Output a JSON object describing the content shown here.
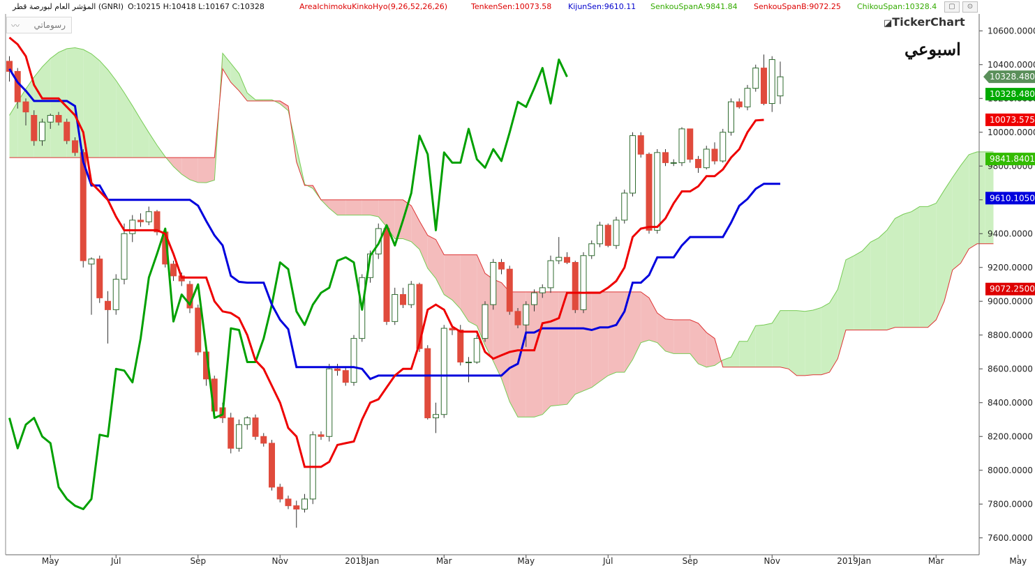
{
  "header": {
    "instrument": "المؤشر العام لبورصة قطر (GNRI)",
    "ohlc": "O:10215  H:10418  L:10167  C:10328",
    "indicator_name": "AreaIchimokuKinkoHyo(9,26,52,26,26)",
    "tenkan": "TenkenSen:10073.58",
    "kijun": "KijunSen:9610.11",
    "span_a": "SenkouSpanA:9841.84",
    "span_b": "SenkouSpanB:9072.25",
    "chikou": "ChikouSpan:10328.4"
  },
  "toolbar": {
    "drawings_label": "رسوماتي",
    "drawings_icon": "pencil-icon"
  },
  "window": {
    "restore_icon": "restore-window-icon",
    "settings_icon": "settings-circle-icon"
  },
  "brand": "TickerChart",
  "period_label": "اسبوعي",
  "colors": {
    "up_candle": "#ffffff",
    "down_candle": "#e04b3c",
    "tenkan": "#ee0000",
    "kijun": "#0000dd",
    "chikou": "#00a000",
    "span_a": "#77cc55",
    "span_b": "#dd3333",
    "cloud_bull": "#ccefc0",
    "cloud_bear": "#f4bcbc"
  },
  "chart_data": {
    "type": "candlestick-ichimoku",
    "ylim": [
      7500,
      10700
    ],
    "y_ticks": [
      7600,
      7800,
      8000,
      8200,
      8400,
      8600,
      8800,
      9000,
      9200,
      9400,
      9600,
      9800,
      10000,
      10200,
      10400,
      10600
    ],
    "x_ticks": [
      "May",
      "Jul",
      "Sep",
      "Nov",
      "2018Jan",
      "Mar",
      "May",
      "Jul",
      "Sep",
      "Nov",
      "2019Jan",
      "Mar",
      "May"
    ],
    "x_tick_index": [
      5,
      13,
      23,
      33,
      43,
      53,
      63,
      73,
      83,
      93,
      103,
      113,
      123
    ],
    "price_labels": [
      {
        "value": 10328.4805,
        "text": "10328.4805",
        "color": "#5a8f5a",
        "shape": "arrow"
      },
      {
        "value": 10328.4805,
        "text": "10328.4805",
        "color": "#00aa00",
        "shape": "box",
        "offset": 1
      },
      {
        "value": 10073.5752,
        "text": "10073.5752",
        "color": "#ee0000",
        "shape": "box"
      },
      {
        "value": 9841.8401,
        "text": "9841.8401",
        "color": "#33bb00",
        "shape": "box"
      },
      {
        "value": 9610.105,
        "text": "9610.1050",
        "color": "#0000dd",
        "shape": "box"
      },
      {
        "value": 9072.25,
        "text": "9072.2500",
        "color": "#dd0000",
        "shape": "box"
      }
    ],
    "candles_close": [
      10360,
      10180,
      10120,
      9950,
      10060,
      10100,
      10060,
      9950,
      9880,
      9240,
      9250,
      9020,
      8950,
      9130,
      9400,
      9480,
      9470,
      9530,
      9410,
      9220,
      9150,
      9120,
      8960,
      8700,
      8540,
      8350,
      8310,
      8130,
      8270,
      8310,
      8200,
      8160,
      7900,
      7830,
      7790,
      7770,
      7830,
      8210,
      8200,
      8600,
      8590,
      8520,
      8780,
      9140,
      9280,
      9430,
      8880,
      9040,
      8980,
      9100,
      8720,
      8310,
      8330,
      8840,
      8830,
      8640,
      8640,
      8780,
      8980,
      9230,
      9190,
      8940,
      8860,
      8980,
      9050,
      9080,
      9240,
      9260,
      9230,
      8950,
      9270,
      9340,
      9450,
      9330,
      9480,
      9640,
      9980,
      9870,
      9420,
      9880,
      9820,
      9820,
      10020,
      9840,
      9790,
      9900,
      9830,
      10000,
      10180,
      10150,
      10260,
      10380,
      10170,
      10430,
      10328
    ],
    "candles_open": [
      10420,
      10360,
      10180,
      10100,
      9950,
      10060,
      10100,
      10060,
      9950,
      9880,
      9220,
      9250,
      9000,
      8950,
      9130,
      9400,
      9480,
      9470,
      9530,
      9410,
      9220,
      9150,
      9100,
      8960,
      8700,
      8540,
      8370,
      8310,
      8130,
      8270,
      8310,
      8200,
      8160,
      7900,
      7830,
      7790,
      7770,
      7830,
      8210,
      8200,
      8600,
      8590,
      8520,
      8780,
      9140,
      9280,
      9430,
      8880,
      9040,
      8980,
      9100,
      8720,
      8310,
      8330,
      8840,
      8830,
      8640,
      8640,
      8780,
      8980,
      9230,
      9190,
      8940,
      8860,
      8980,
      9050,
      9080,
      9240,
      9260,
      9230,
      8950,
      9270,
      9340,
      9450,
      9330,
      9480,
      9640,
      9980,
      9870,
      9420,
      9880,
      9820,
      9820,
      10020,
      9840,
      9790,
      9900,
      9830,
      10000,
      10180,
      10150,
      10260,
      10380,
      10170,
      10215
    ],
    "candles_high": [
      10450,
      10380,
      10200,
      10130,
      10080,
      10110,
      10120,
      10080,
      9970,
      9900,
      9260,
      9270,
      9060,
      9160,
      9460,
      9510,
      9520,
      9560,
      9540,
      9420,
      9240,
      9170,
      9120,
      8980,
      8720,
      8560,
      8400,
      8340,
      8300,
      8320,
      8330,
      8220,
      8180,
      7920,
      7850,
      7820,
      7860,
      8230,
      8230,
      8630,
      8630,
      8610,
      8800,
      9160,
      9300,
      9460,
      9440,
      9080,
      9080,
      9120,
      9110,
      8740,
      8400,
      8860,
      8860,
      8860,
      8670,
      8800,
      9000,
      9250,
      9250,
      9210,
      8960,
      9000,
      9070,
      9100,
      9270,
      9380,
      9290,
      9240,
      9290,
      9360,
      9470,
      9460,
      9500,
      9660,
      10000,
      10000,
      9880,
      9900,
      9900,
      9840,
      10030,
      10020,
      9860,
      9920,
      9940,
      10020,
      10200,
      10200,
      10280,
      10400,
      10460,
      10450,
      10418
    ],
    "candles_low": [
      10300,
      10140,
      10040,
      9920,
      9920,
      10020,
      10040,
      9930,
      9860,
      9200,
      8920,
      8990,
      8750,
      8920,
      9100,
      9350,
      9440,
      9450,
      9390,
      9200,
      9120,
      9090,
      8930,
      8680,
      8500,
      8330,
      8280,
      8100,
      8110,
      8240,
      8180,
      8140,
      7880,
      7810,
      7770,
      7660,
      7750,
      7800,
      8180,
      8170,
      8560,
      8500,
      8500,
      8760,
      9110,
      9250,
      8860,
      8860,
      8960,
      8960,
      8700,
      8300,
      8220,
      8310,
      8800,
      8620,
      8520,
      8630,
      8760,
      8950,
      9160,
      8920,
      8840,
      8730,
      8940,
      9020,
      9050,
      9220,
      9220,
      8930,
      8930,
      9250,
      9320,
      9320,
      9310,
      9460,
      9620,
      9850,
      9400,
      9400,
      9800,
      9800,
      9800,
      9820,
      9760,
      9780,
      9810,
      9820,
      9980,
      10140,
      10130,
      10240,
      10160,
      10120,
      10167
    ],
    "tenkan": [
      10560,
      10520,
      10450,
      10280,
      10200,
      10200,
      10200,
      10150,
      10100,
      10000,
      9700,
      9650,
      9600,
      9500,
      9420,
      9420,
      9420,
      9420,
      9420,
      9400,
      9280,
      9140,
      9140,
      9140,
      9140,
      9000,
      8940,
      8930,
      8900,
      8800,
      8650,
      8600,
      8500,
      8400,
      8250,
      8200,
      8020,
      8020,
      8020,
      8050,
      8150,
      8160,
      8170,
      8300,
      8400,
      8420,
      8490,
      8560,
      8600,
      8600,
      8750,
      8950,
      8980,
      8950,
      8850,
      8820,
      8820,
      8820,
      8700,
      8660,
      8680,
      8700,
      8710,
      8710,
      8710,
      8870,
      8880,
      8900,
      9050,
      9050,
      9050,
      9050,
      9050,
      9080,
      9120,
      9200,
      9380,
      9430,
      9440,
      9440,
      9490,
      9580,
      9650,
      9650,
      9680,
      9740,
      9740,
      9780,
      9850,
      9900,
      10000,
      10070,
      10073
    ]
  }
}
